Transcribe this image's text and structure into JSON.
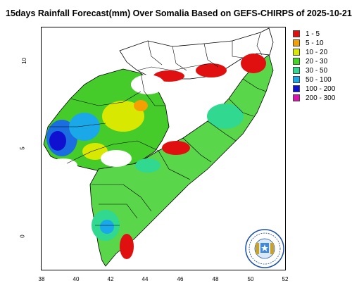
{
  "title": "15days Rainfall Forecast(mm) Over Somalia Based on  GEFS-CHIRPS of 2025-10-21",
  "map": {
    "x_ticks": [
      "38",
      "40",
      "42",
      "44",
      "46",
      "48",
      "50",
      "52"
    ],
    "y_ticks": [
      "10",
      "5",
      "0"
    ]
  },
  "legend": {
    "items": [
      {
        "label": "1 - 5",
        "color": "#e01010"
      },
      {
        "label": "5 - 10",
        "color": "#f5a000"
      },
      {
        "label": "10 - 20",
        "color": "#d8e800"
      },
      {
        "label": "20 - 30",
        "color": "#40d820"
      },
      {
        "label": "30 - 50",
        "color": "#30d890"
      },
      {
        "label": "50 - 100",
        "color": "#1aa8e8"
      },
      {
        "label": "100 - 200",
        "color": "#1010d0"
      },
      {
        "label": "200 - 300",
        "color": "#e010b0"
      }
    ]
  },
  "emblem": "somalia-emblem-icon"
}
